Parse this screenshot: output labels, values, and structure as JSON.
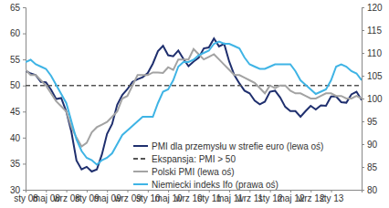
{
  "chart_data": {
    "type": "line",
    "categories": [
      "sty 08",
      null,
      null,
      null,
      "maj 08",
      null,
      null,
      null,
      "wrz 08",
      null,
      null,
      null,
      "sty 09",
      null,
      null,
      null,
      "maj 09",
      null,
      null,
      null,
      "wrz 09",
      null,
      null,
      null,
      "sty 10",
      null,
      null,
      null,
      "maj 10",
      null,
      null,
      null,
      "wrz 10",
      null,
      null,
      null,
      "sty 11",
      null,
      null,
      null,
      "maj 11",
      null,
      null,
      null,
      "wrz 11",
      null,
      null,
      null,
      "sty 12",
      null,
      null,
      null,
      "maj 12",
      null,
      null,
      null,
      "wrz 12",
      null,
      null,
      null,
      "sty 13",
      null,
      null,
      null,
      null,
      null,
      null
    ],
    "ylim": [
      30,
      65
    ],
    "yticks": [
      30,
      35,
      40,
      45,
      50,
      55,
      60,
      65
    ],
    "y2lim": [
      80,
      120
    ],
    "y2ticks": [
      80,
      85,
      90,
      95,
      100,
      105,
      110,
      115,
      120
    ],
    "legend": "bottom",
    "series": [
      {
        "name": "PMI dla przemysłu w strefie euro (lewa oś)",
        "color": "#1f2f6e",
        "line_style": "solid",
        "values": [
          52.8,
          52.3,
          52,
          50.7,
          50.6,
          49.2,
          47.4,
          47.6,
          45,
          41.1,
          35.6,
          33.9,
          34.4,
          33.5,
          33.9,
          36.8,
          40.7,
          42.6,
          46.3,
          48.2,
          49.3,
          50.7,
          51.2,
          51.6,
          52.4,
          54.2,
          56.6,
          57.6,
          55.8,
          55.6,
          56.7,
          55.1,
          53.7,
          54.6,
          55.3,
          57.1,
          57.3,
          59,
          57.5,
          58,
          54.6,
          52,
          50.4,
          49,
          48.5,
          47.1,
          46.4,
          46.9,
          48.8,
          49,
          47.7,
          45.9,
          45.1,
          45.1,
          44,
          45.1,
          46.1,
          45.4,
          46.2,
          46.1,
          47.9,
          47.9,
          46.8,
          46.7,
          48.3,
          48.8,
          47.2
        ]
      },
      {
        "name": "Ekspansja: PMI > 50",
        "color": "#555555",
        "line_style": "dashed",
        "values": [
          50,
          50,
          50,
          50,
          50,
          50,
          50,
          50,
          50,
          50,
          50,
          50,
          50,
          50,
          50,
          50,
          50,
          50,
          50,
          50,
          50,
          50,
          50,
          50,
          50,
          50,
          50,
          50,
          50,
          50,
          50,
          50,
          50,
          50,
          50,
          50,
          50,
          50,
          50,
          50,
          50,
          50,
          50,
          50,
          50,
          50,
          50,
          50,
          50,
          50,
          50,
          50,
          50,
          50,
          50,
          50,
          50,
          50,
          50,
          50,
          50,
          50,
          50,
          50,
          50,
          50,
          50
        ]
      },
      {
        "name": "Polski PMI (lewa oś)",
        "color": "#a3a3a3",
        "line_style": "solid",
        "values": [
          53,
          52,
          52,
          51,
          50,
          48.5,
          47,
          46,
          45,
          42,
          40,
          38.3,
          39,
          41,
          42,
          42.5,
          43,
          44,
          45,
          47.5,
          48,
          50,
          52,
          52,
          52,
          52.5,
          52.5,
          52.4,
          53.5,
          53,
          55,
          55,
          55,
          57,
          56,
          55,
          55.5,
          56,
          55,
          54,
          53,
          52,
          52,
          51.5,
          51,
          50.5,
          49.5,
          48.5,
          50,
          49.5,
          50,
          50,
          49,
          48.5,
          48.5,
          48,
          47.5,
          47.5,
          48,
          48.5,
          48.5,
          48,
          48,
          47.5,
          47.5,
          48,
          47.5
        ]
      },
      {
        "name": "Niemiecki indeks Ifo (prawa oś)",
        "color": "#3fb4e5",
        "line_style": "solid",
        "axis": "y2",
        "values": [
          108,
          108.5,
          107.5,
          107,
          106.5,
          105,
          103,
          101,
          99,
          95,
          91,
          88.5,
          87,
          86.5,
          85.5,
          86.5,
          87,
          88,
          90,
          92,
          93,
          94,
          95,
          96,
          96,
          96,
          99,
          101.5,
          102,
          104,
          107,
          108,
          108,
          108.5,
          109.5,
          110,
          110.5,
          112,
          112.5,
          112,
          112,
          111.5,
          111,
          109,
          107.5,
          107,
          106.5,
          106.5,
          107,
          107.5,
          107.5,
          107.5,
          107.5,
          106,
          104,
          103,
          102,
          101,
          101.5,
          102,
          104,
          107,
          107.5,
          107,
          106,
          105.5,
          104
        ]
      }
    ]
  }
}
